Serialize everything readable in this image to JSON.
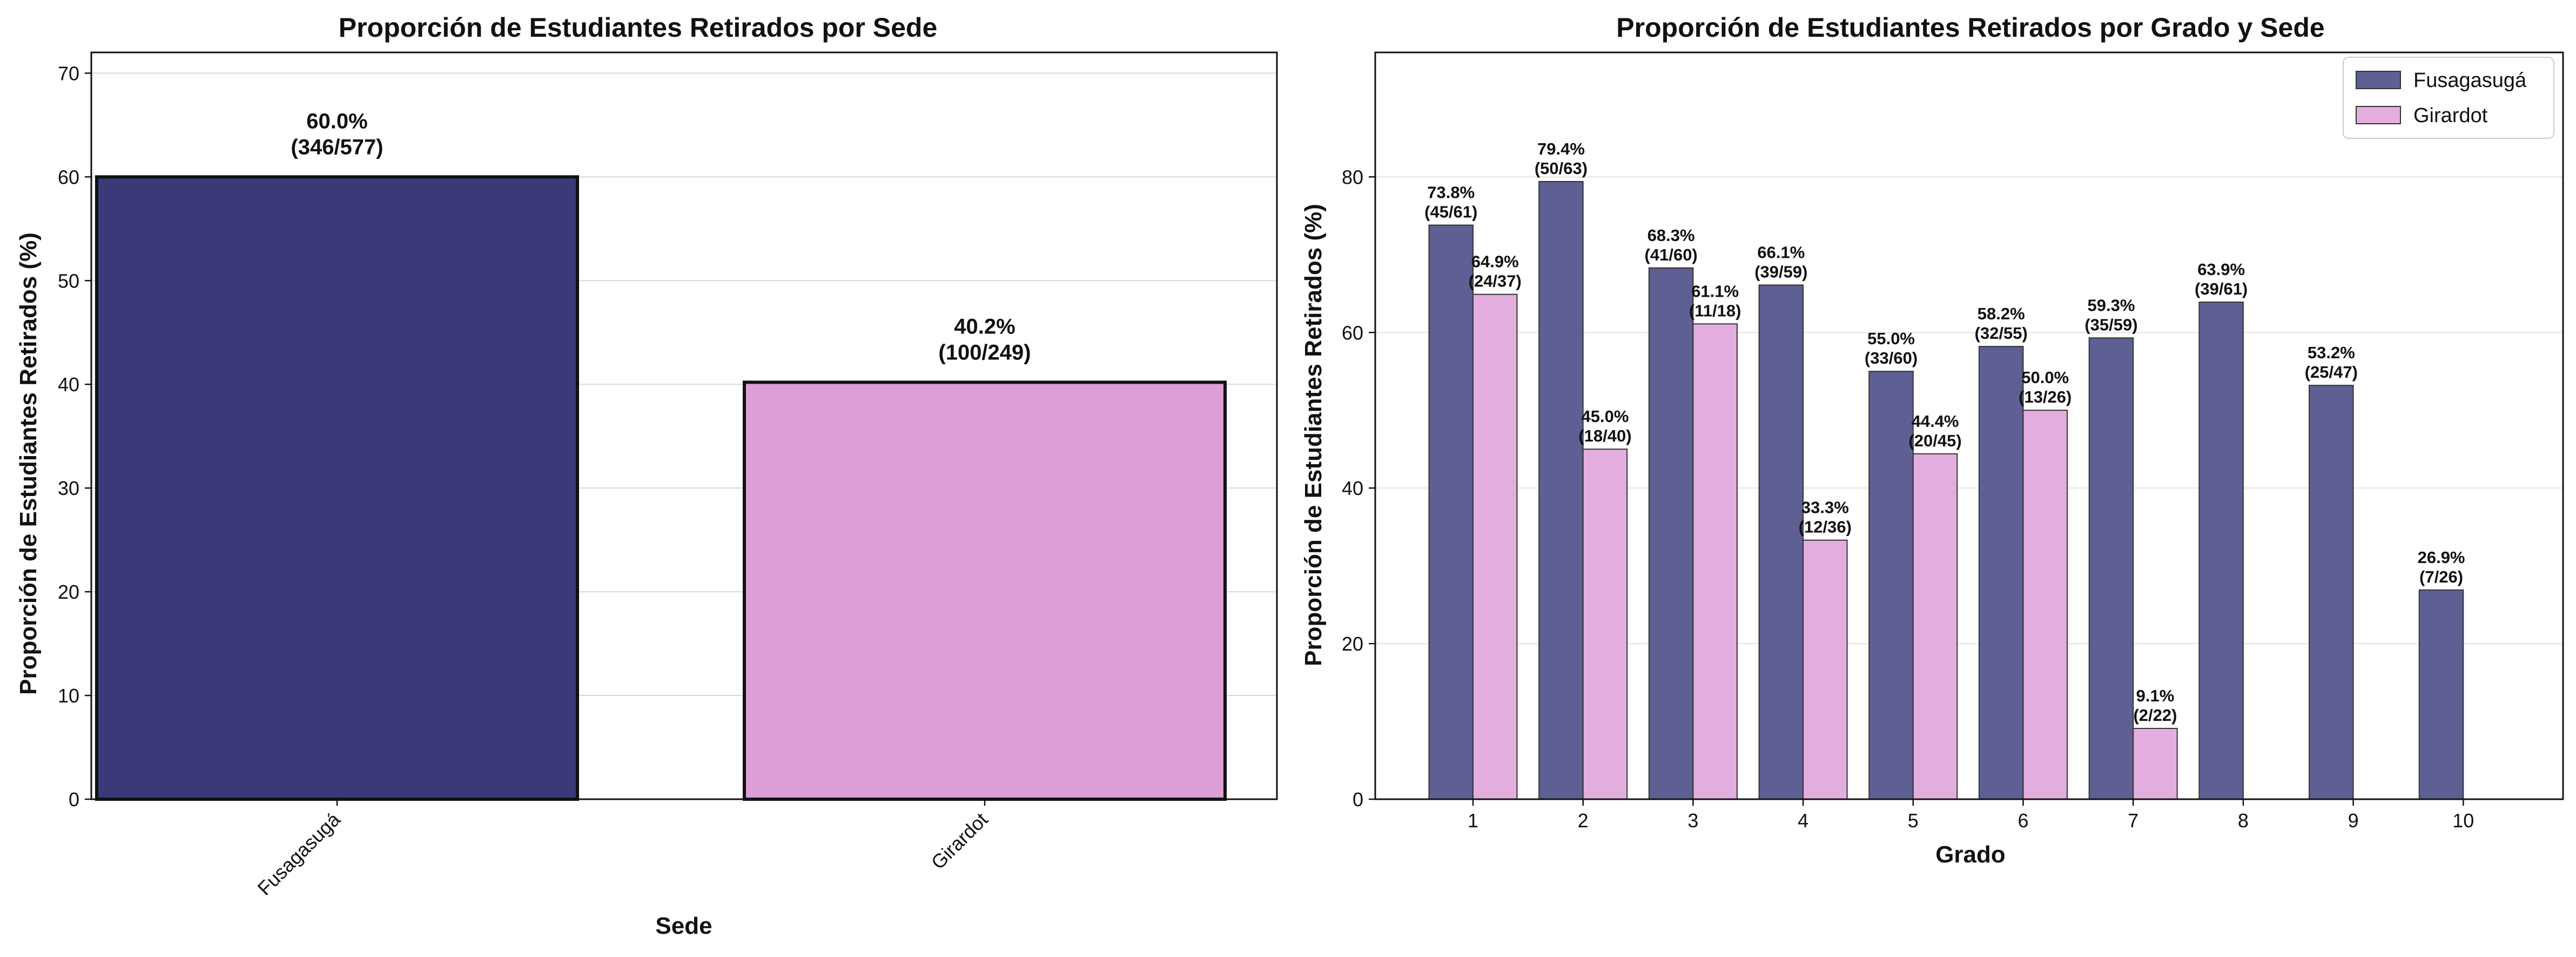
{
  "chart_data": [
    {
      "type": "bar",
      "title": "Proporción de Estudiantes Retirados por Sede",
      "xlabel": "Sede",
      "ylabel": "Proporción de Estudiantes Retirados (%)",
      "categories": [
        "Fusagasugá",
        "Girardot"
      ],
      "values": [
        60.0,
        40.2
      ],
      "labels": [
        "60.0%\n(346/577)",
        "40.2%\n(100/249)"
      ],
      "colors": [
        "#3a3a78",
        "#dc9ed6"
      ],
      "ylim": [
        0,
        72
      ],
      "yticks": [
        0,
        10,
        20,
        30,
        40,
        50,
        60,
        70
      ],
      "grid": true,
      "xtick_rotation": 45
    },
    {
      "type": "bar",
      "title": "Proporción de Estudiantes Retirados por Grado y Sede",
      "xlabel": "Grado",
      "ylabel": "Proporción de Estudiantes Retirados (%)",
      "categories": [
        "1",
        "2",
        "3",
        "4",
        "5",
        "6",
        "7",
        "8",
        "9",
        "10"
      ],
      "series": [
        {
          "name": "Fusagasugá",
          "color": "#5e5f93",
          "values": [
            73.8,
            79.4,
            68.3,
            66.1,
            55.0,
            58.2,
            59.3,
            63.9,
            53.2,
            26.9
          ],
          "labels": [
            "73.8%\n(45/61)",
            "79.4%\n(50/63)",
            "68.3%\n(41/60)",
            "66.1%\n(39/59)",
            "55.0%\n(33/60)",
            "58.2%\n(32/55)",
            "59.3%\n(35/59)",
            "63.9%\n(39/61)",
            "53.2%\n(25/47)",
            "26.9%\n(7/26)"
          ]
        },
        {
          "name": "Girardot",
          "color": "#e3aede",
          "values": [
            64.9,
            45.0,
            61.1,
            33.3,
            44.4,
            50.0,
            9.1,
            null,
            null,
            null
          ],
          "labels": [
            "64.9%\n(24/37)",
            "45.0%\n(18/40)",
            "61.1%\n(11/18)",
            "33.3%\n(12/36)",
            "44.4%\n(20/45)",
            "50.0%\n(13/26)",
            "9.1%\n(2/22)",
            null,
            null,
            null
          ]
        }
      ],
      "ylim": [
        0,
        96
      ],
      "yticks": [
        0,
        20,
        40,
        60,
        80
      ],
      "grid": true,
      "legend": "top-right"
    }
  ]
}
